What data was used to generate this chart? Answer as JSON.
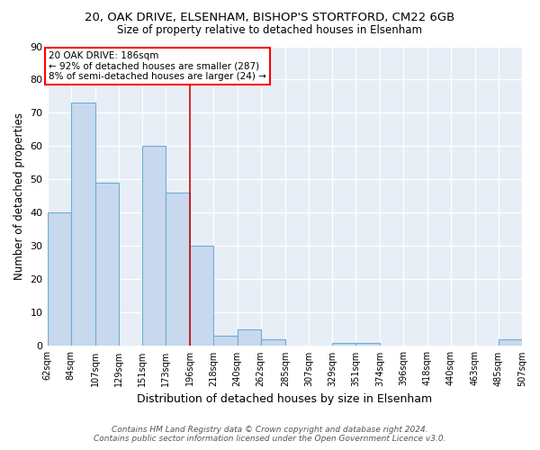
{
  "title1": "20, OAK DRIVE, ELSENHAM, BISHOP'S STORTFORD, CM22 6GB",
  "title2": "Size of property relative to detached houses in Elsenham",
  "xlabel": "Distribution of detached houses by size in Elsenham",
  "ylabel": "Number of detached properties",
  "annotation_line1": "20 OAK DRIVE: 186sqm",
  "annotation_line2": "← 92% of detached houses are smaller (287)",
  "annotation_line3": "8% of semi-detached houses are larger (24) →",
  "footer1": "Contains HM Land Registry data © Crown copyright and database right 2024.",
  "footer2": "Contains public sector information licensed under the Open Government Licence v3.0.",
  "bar_color": "#c8d9ee",
  "bar_edge_color": "#6baed6",
  "background_color": "#e8eef6",
  "red_line_x": 186,
  "ylim": [
    0,
    90
  ],
  "yticks": [
    0,
    10,
    20,
    30,
    40,
    50,
    60,
    70,
    80,
    90
  ],
  "bins": [
    62,
    84,
    107,
    129,
    151,
    173,
    196,
    218,
    240,
    262,
    285,
    307,
    329,
    351,
    374,
    396,
    418,
    440,
    463,
    485,
    507
  ],
  "counts": [
    40,
    73,
    49,
    0,
    60,
    46,
    30,
    3,
    5,
    2,
    0,
    0,
    1,
    1,
    0,
    0,
    0,
    0,
    0,
    2
  ]
}
